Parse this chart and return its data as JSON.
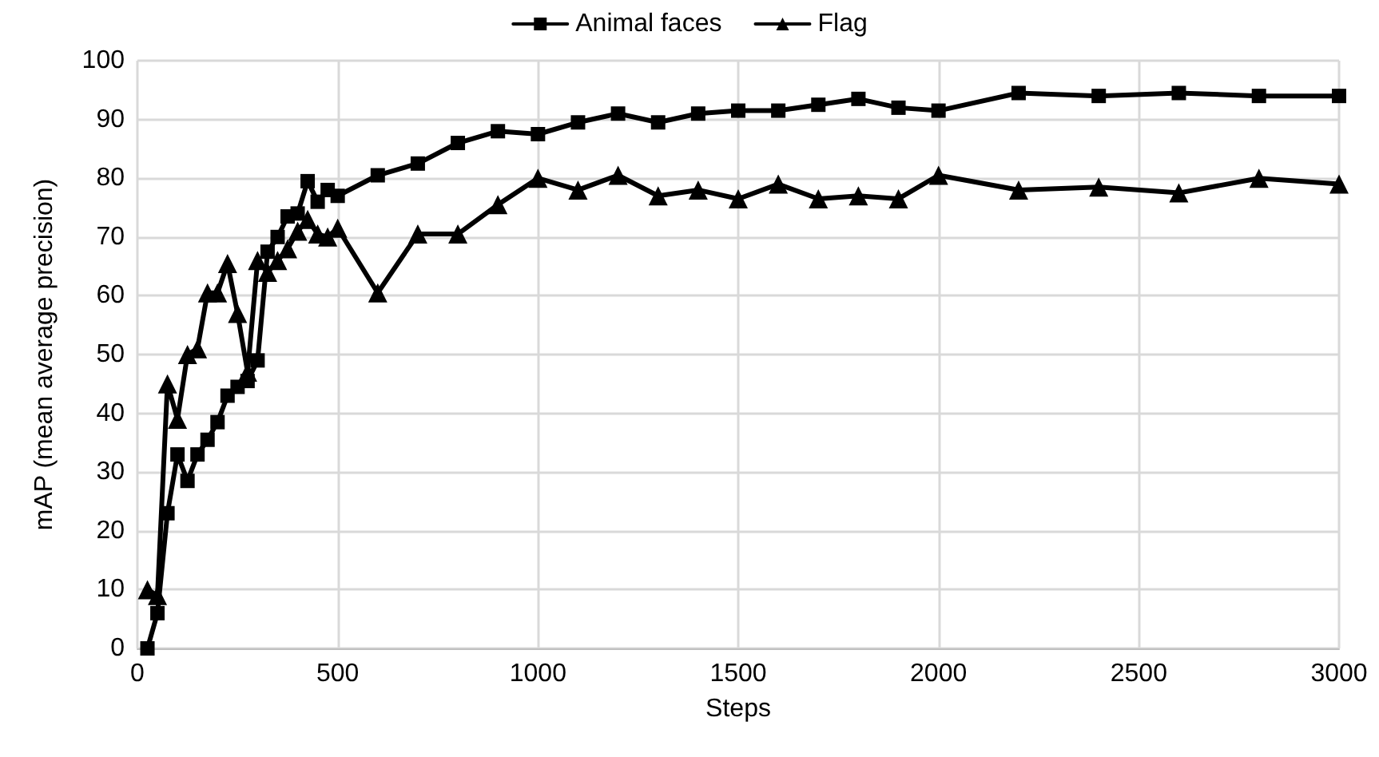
{
  "chart_data": {
    "type": "line",
    "xlabel": "Steps",
    "ylabel": "mAP (mean average precision)",
    "x": [
      25,
      50,
      75,
      100,
      125,
      150,
      175,
      200,
      225,
      250,
      275,
      300,
      325,
      350,
      375,
      400,
      425,
      450,
      475,
      500,
      600,
      700,
      800,
      900,
      1000,
      1100,
      1200,
      1300,
      1400,
      1500,
      1600,
      1700,
      1800,
      1900,
      2000,
      2200,
      2400,
      2600,
      2800,
      3000
    ],
    "series": [
      {
        "name": "Animal faces",
        "color": "#000000",
        "marker": "square",
        "values": [
          0,
          6,
          23,
          33,
          28.5,
          33,
          35.5,
          38.5,
          43,
          44.5,
          45.5,
          49,
          67.5,
          70,
          73.5,
          74,
          79.5,
          76,
          78,
          77,
          80.5,
          82.5,
          86,
          88,
          87.5,
          89.5,
          91,
          89.5,
          91,
          91.5,
          91.5,
          92.5,
          93.5,
          92,
          91.5,
          94.5,
          94,
          94.5,
          94,
          94
        ]
      },
      {
        "name": "Flag",
        "color": "#000000",
        "marker": "triangle",
        "values": [
          10,
          9,
          45,
          39,
          50,
          51,
          60.5,
          60.5,
          65.5,
          57,
          47,
          66,
          64,
          66,
          68,
          71,
          73,
          70.5,
          70,
          71.5,
          60.5,
          70.5,
          70.5,
          75.5,
          80,
          78,
          80.5,
          77,
          78,
          76.5,
          79,
          76.5,
          77,
          76.5,
          80.5,
          78,
          78.5,
          77.5,
          80,
          79
        ]
      }
    ],
    "xlim": [
      0,
      3000
    ],
    "xticks": [
      0,
      500,
      1000,
      1500,
      2000,
      2500,
      3000
    ],
    "ylim": [
      0,
      100
    ],
    "yticks": [
      0,
      10,
      20,
      30,
      40,
      50,
      60,
      70,
      80,
      90,
      100
    ],
    "grid": true,
    "legend": "top",
    "line_style": "solid"
  }
}
